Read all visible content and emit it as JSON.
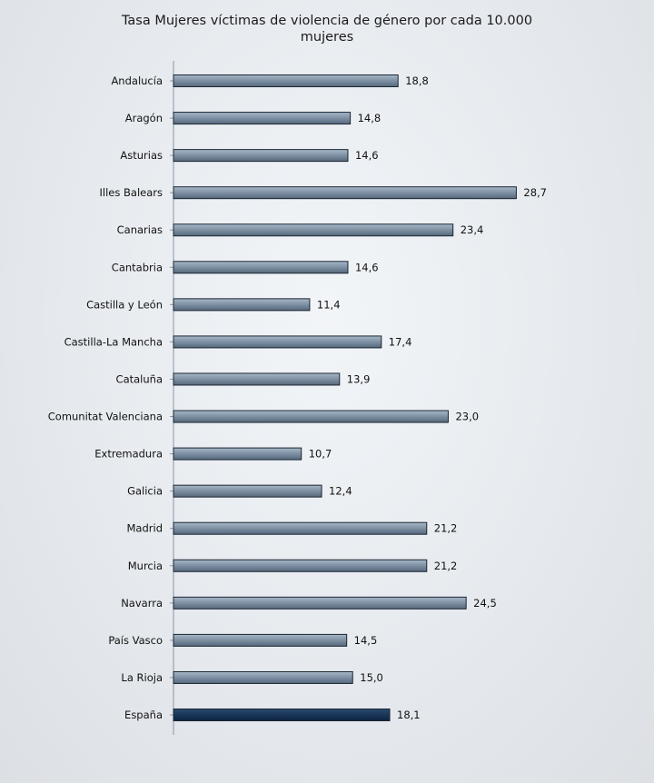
{
  "chart_data": {
    "type": "bar",
    "orientation": "horizontal",
    "title": "Tasa Mujeres víctimas de violencia de género por cada 10.000 mujeres",
    "title_lines": [
      "Tasa Mujeres víctimas de violencia de género por cada 10.000",
      "mujeres"
    ],
    "xlabel": "",
    "ylabel": "",
    "xlim": [
      0,
      30
    ],
    "grid": false,
    "legend": "none",
    "categories": [
      "Andalucía",
      "Aragón",
      "Asturias",
      "Illes Balears",
      "Canarias",
      "Cantabria",
      "Castilla y León",
      "Castilla-La Mancha",
      "Cataluña",
      "Comunitat Valenciana",
      "Extremadura",
      "Galicia",
      "Madrid",
      "Murcia",
      "Navarra",
      "País Vasco",
      "La Rioja",
      "España"
    ],
    "values": [
      18.8,
      14.8,
      14.6,
      28.7,
      23.4,
      14.6,
      11.4,
      17.4,
      13.9,
      23.0,
      10.7,
      12.4,
      21.2,
      21.2,
      24.5,
      14.5,
      15.0,
      18.1
    ],
    "value_labels": [
      "18,8",
      "14,8",
      "14,6",
      "28,7",
      "23,4",
      "14,6",
      "11,4",
      "17,4",
      "13,9",
      "23,0",
      "10,7",
      "12,4",
      "21,2",
      "21,2",
      "24,5",
      "14,5",
      "15,0",
      "18,1"
    ],
    "highlight_category": "España",
    "colors": {
      "bar_light": "#a6b7c8",
      "bar_dark": "#55687c",
      "highlight_light": "#2a4a70",
      "highlight_dark": "#0b2340",
      "bar_edge": "#1b2633",
      "axis": "#8a96a2"
    }
  }
}
